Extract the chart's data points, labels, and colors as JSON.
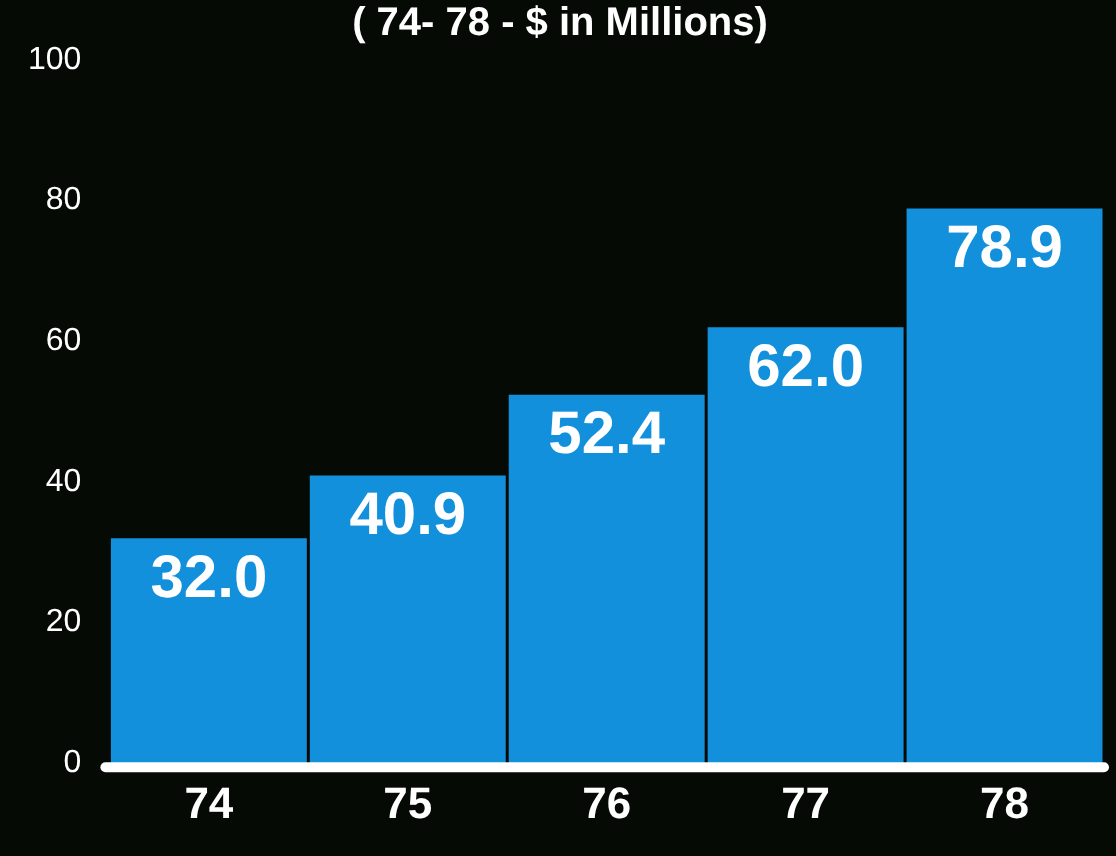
{
  "chart_data": {
    "type": "bar",
    "title": "( 74- 78 - $ in Millions)",
    "categories": [
      "74",
      "75",
      "76",
      "77",
      "78"
    ],
    "values": [
      32.0,
      40.9,
      52.4,
      62.0,
      78.9
    ],
    "value_labels": [
      "32.0",
      "40.9",
      "52.4",
      "62.0",
      "78.9"
    ],
    "color": "#1390dc",
    "ylim": [
      0,
      100
    ],
    "yticks": [
      0,
      20,
      40,
      60,
      80,
      100
    ],
    "grid": false,
    "legend": false
  }
}
